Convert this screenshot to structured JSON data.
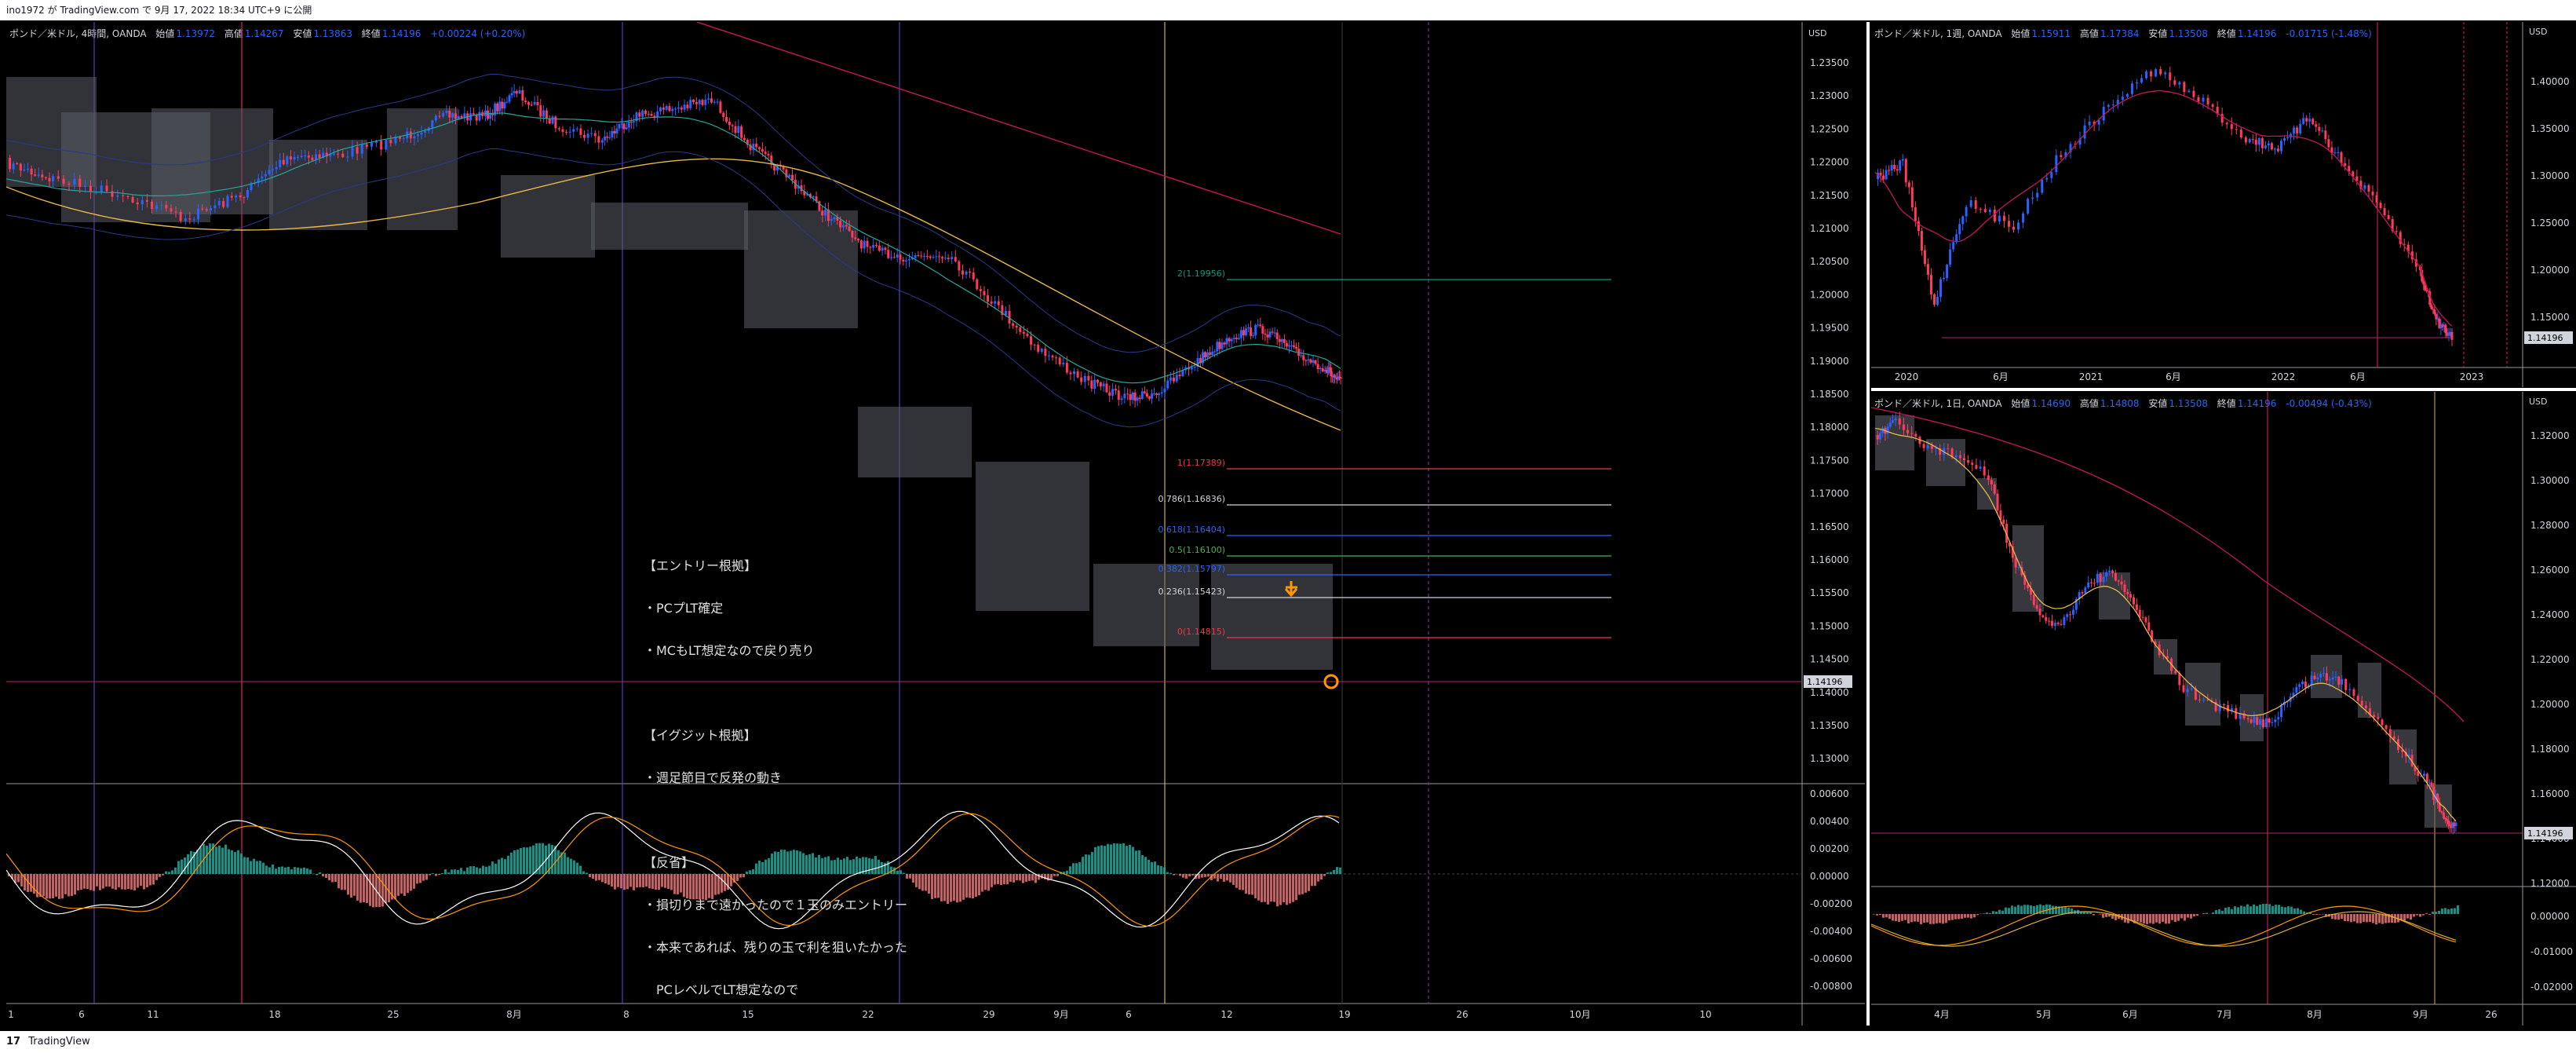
{
  "header": {
    "publish_line": "ino1972 が TradingView.com で 9月 17, 2022 18:34 UTC+9 に公開"
  },
  "footer": {
    "brand": "TradingView",
    "logo_text": "17"
  },
  "main_chart": {
    "legend": {
      "symbol": "ポンド／米ドル, 4時間, OANDA",
      "open_label": "始値",
      "open": "1.13972",
      "high_label": "高値",
      "high": "1.14267",
      "low_label": "安値",
      "low": "1.13863",
      "close_label": "終値",
      "close": "1.14196",
      "change": "+0.00224 (+0.20%)"
    },
    "currency": "USD",
    "price_axis": [
      "1.23500",
      "1.23000",
      "1.22500",
      "1.22000",
      "1.21500",
      "1.21000",
      "1.20500",
      "1.20000",
      "1.19500",
      "1.19000",
      "1.18500",
      "1.18000",
      "1.17500",
      "1.17000",
      "1.16500",
      "1.16000",
      "1.15500",
      "1.15000",
      "1.14500",
      "1.14000",
      "1.13500",
      "1.13000"
    ],
    "last_price": "1.14196",
    "osc_axis": [
      "0.00600",
      "0.00400",
      "0.00200",
      "0.00000",
      "-0.00200",
      "-0.00400",
      "-0.00600",
      "-0.00800"
    ],
    "time_axis": [
      "1",
      "6",
      "11",
      "18",
      "25",
      "8月",
      "8",
      "15",
      "22",
      "29",
      "9月",
      "6",
      "12",
      "19",
      "26",
      "10月",
      "10"
    ],
    "fib_levels": [
      "2(1.19956)",
      "1(1.17389)",
      "0.786(1.16836)",
      "0.618(1.16404)",
      "0.5(1.16100)",
      "0.382(1.15797)",
      "0.236(1.15423)",
      "0(1.14815)"
    ],
    "note": {
      "entry_title": "【エントリー根拠】",
      "entry_1": "・PCプLT確定",
      "entry_2": "・MCもLT想定なので戻り売り",
      "exit_title": "【イグジット根拠】",
      "exit_1": "・週足節目で反発の動き",
      "review_title": "【反省】",
      "review_1": "・損切りまで遠かったので１玉のみエントリー",
      "review_2": "・本来であれば、残りの玉で利を狙いたかった",
      "review_3": "　PCレベルでLT想定なので"
    }
  },
  "weekly_chart": {
    "legend": {
      "symbol": "ポンド／米ドル, 1週, OANDA",
      "open_label": "始値",
      "open": "1.15911",
      "high_label": "高値",
      "high": "1.17384",
      "low_label": "安値",
      "low": "1.13508",
      "close_label": "終値",
      "close": "1.14196",
      "change": "-0.01715 (-1.48%)"
    },
    "currency": "USD",
    "price_axis": [
      "1.40000",
      "1.35000",
      "1.30000",
      "1.25000",
      "1.20000",
      "1.15000"
    ],
    "last_price": "1.14196",
    "time_axis": [
      "2020",
      "6月",
      "2021",
      "6月",
      "2022",
      "6月",
      "2023"
    ]
  },
  "daily_chart": {
    "legend": {
      "symbol": "ポンド／米ドル, 1日, OANDA",
      "open_label": "始値",
      "open": "1.14690",
      "high_label": "高値",
      "high": "1.14808",
      "low_label": "安値",
      "low": "1.13508",
      "close_label": "終値",
      "close": "1.14196",
      "change": "-0.00494 (-0.43%)"
    },
    "currency": "USD",
    "price_axis": [
      "1.32000",
      "1.30000",
      "1.28000",
      "1.26000",
      "1.24000",
      "1.22000",
      "1.20000",
      "1.18000",
      "1.16000",
      "1.14000",
      "1.12000"
    ],
    "last_price": "1.14196",
    "osc_axis": [
      "0.00000",
      "-0.01000",
      "-0.02000"
    ],
    "time_axis": [
      "4月",
      "5月",
      "6月",
      "7月",
      "8月",
      "9月",
      "26"
    ]
  },
  "colors": {
    "bull": "#2962ff",
    "bear": "#ff3b5c",
    "ma_yellow": "#e6b84a",
    "ma_red": "#c2185b",
    "bb": "#2a3a8a",
    "fib_red": "#f23645",
    "fib_white": "#d1d4dc",
    "fib_blue": "#2962ff",
    "fib_green": "#4caf50",
    "fib_teal": "#089981"
  }
}
